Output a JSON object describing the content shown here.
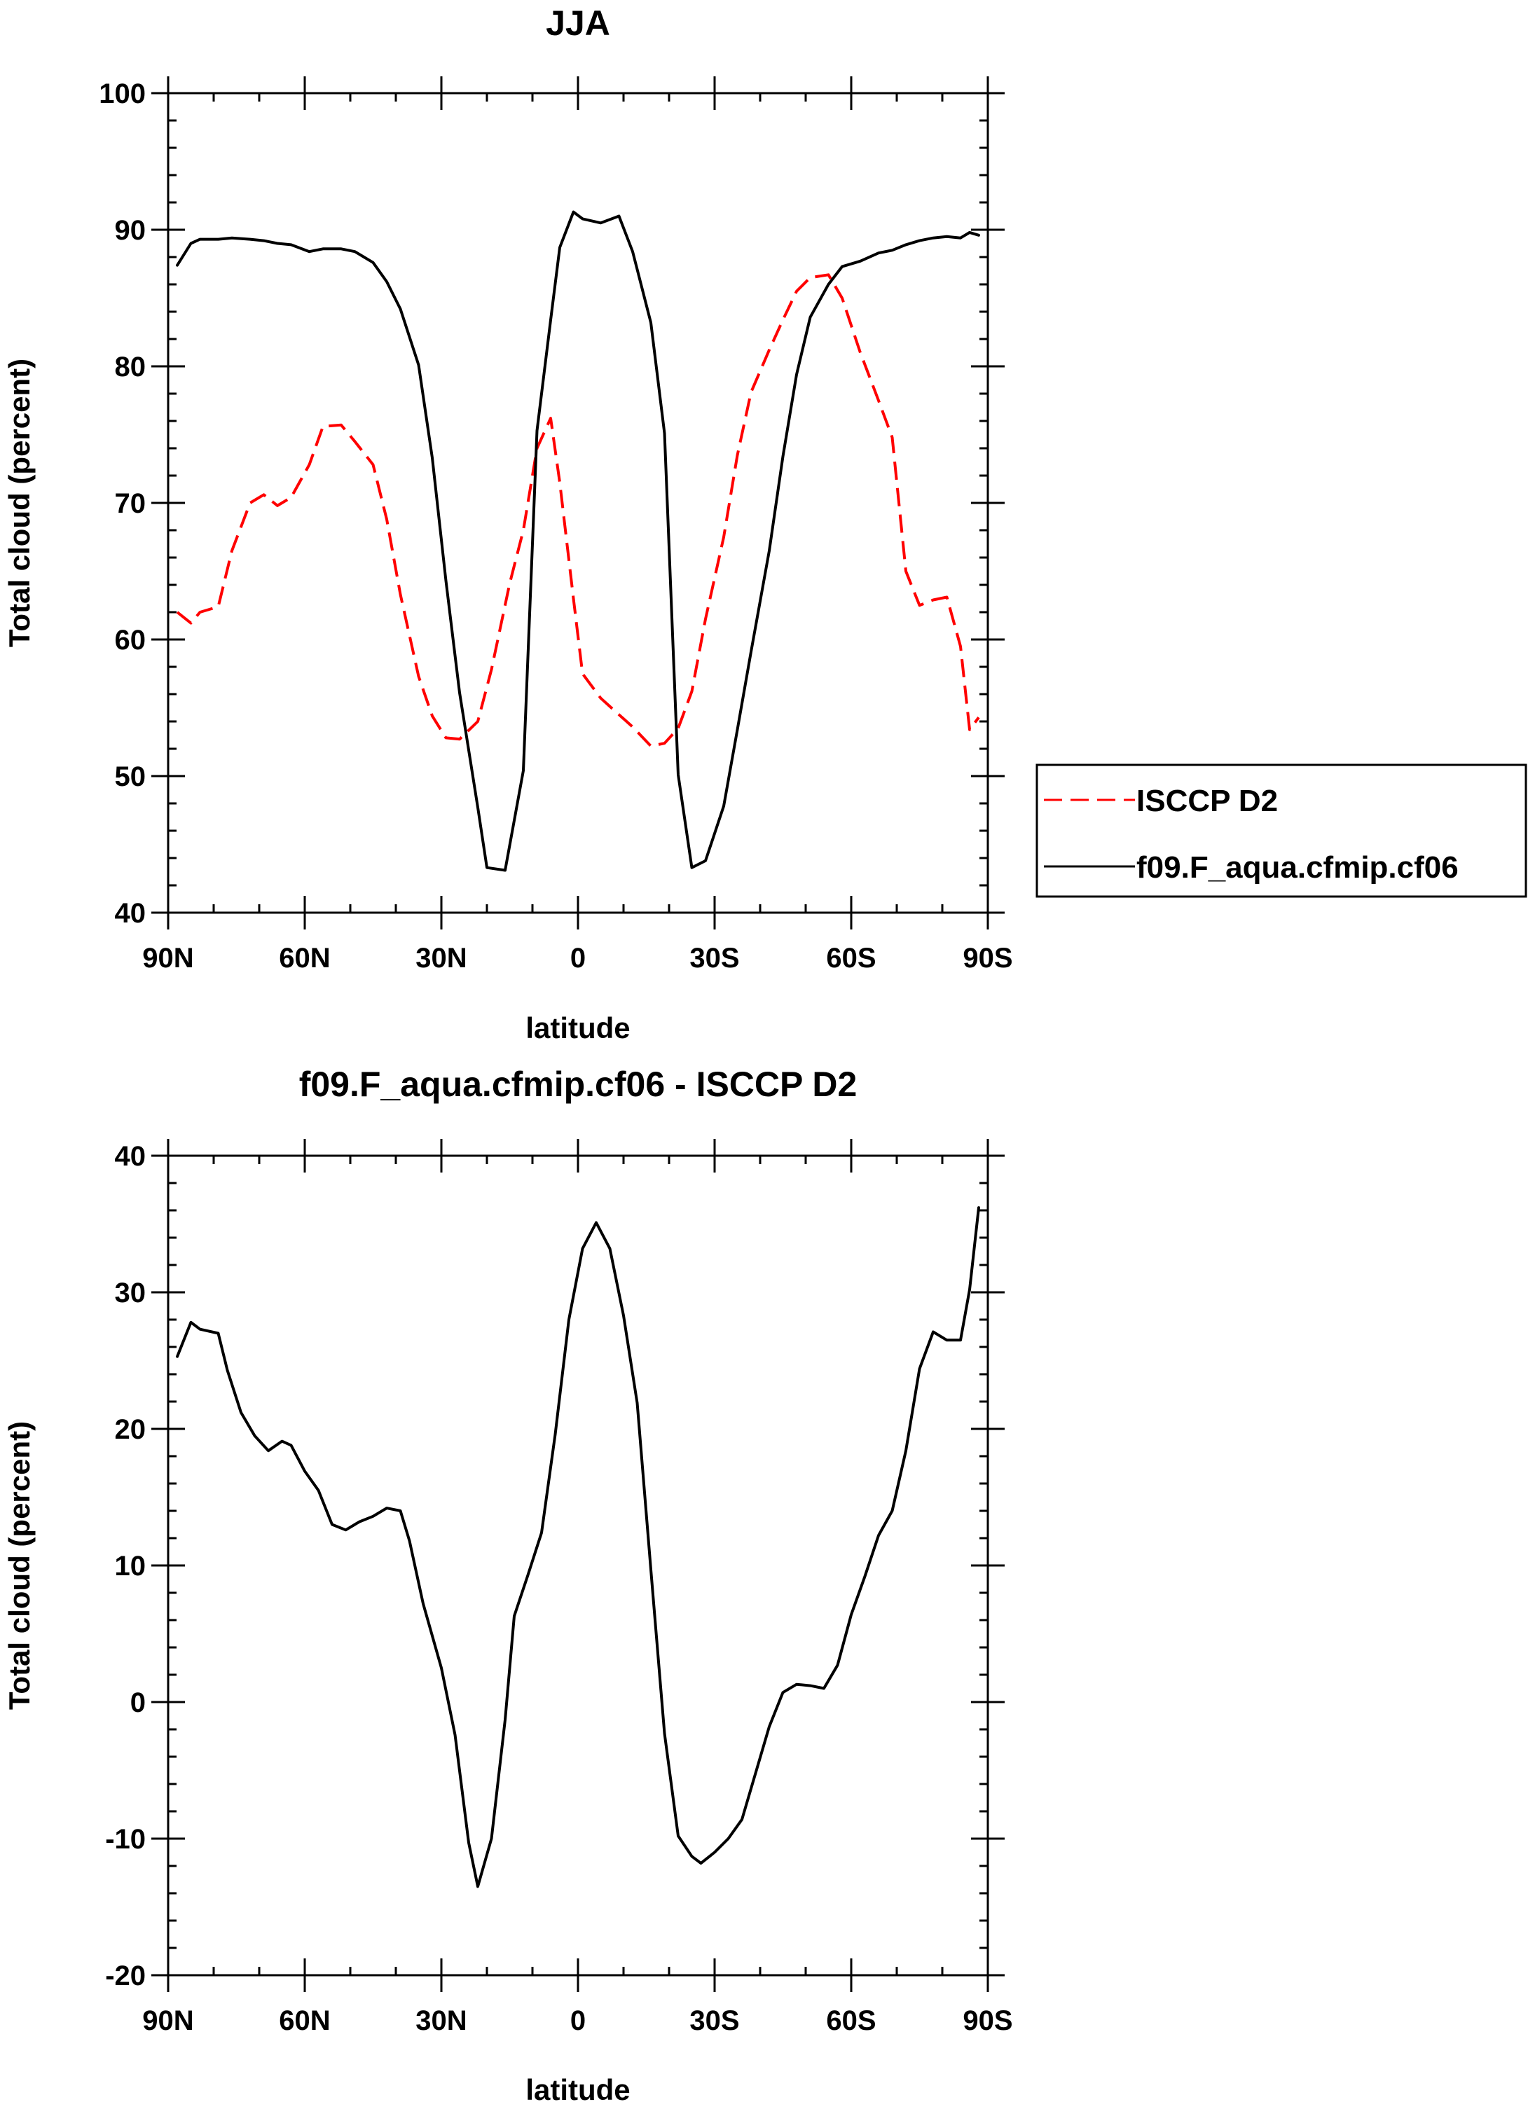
{
  "chart_data": [
    {
      "type": "line",
      "title": "JJA",
      "xlabel": "latitude",
      "ylabel": "Total cloud (percent)",
      "xlim": [
        -90,
        90
      ],
      "ylim": [
        40,
        100
      ],
      "xtick_labels": [
        "90N",
        "60N",
        "30N",
        "0",
        "30S",
        "60S",
        "90S"
      ],
      "ytick_labels": [
        "40",
        "50",
        "60",
        "70",
        "80",
        "90",
        "100"
      ],
      "legend": [
        "ISCCP D2",
        "f09.F_aqua.cfmip.cf06"
      ],
      "legend_position": "right",
      "series": [
        {
          "name": "ISCCP D2",
          "color": "#ff0000",
          "style": "dashed",
          "x": [
            -88,
            -85,
            -83,
            -79,
            -76,
            -72,
            -69,
            -66,
            -63,
            -59,
            -56,
            -52,
            -49,
            -45,
            -42,
            -39,
            -35,
            -32,
            -29,
            -26,
            -22,
            -19,
            -15,
            -12,
            -9,
            -6,
            -4,
            -1,
            1,
            5,
            9,
            12,
            16,
            19,
            22,
            25,
            28,
            32,
            35,
            38,
            42,
            45,
            48,
            51,
            55,
            58,
            62,
            66,
            69,
            72,
            75,
            78,
            81,
            84,
            86,
            88
          ],
          "values": [
            62,
            61.2,
            62,
            62.4,
            66.5,
            70,
            70.6,
            69.8,
            70.4,
            72.8,
            75.6,
            75.7,
            74.5,
            72.8,
            68.8,
            63.3,
            57.3,
            54.4,
            52.8,
            52.7,
            54,
            57.8,
            64.1,
            68,
            74,
            76.2,
            71.5,
            63,
            57.5,
            55.7,
            54.5,
            53.6,
            52.2,
            52.4,
            53.5,
            56.2,
            61.5,
            67.5,
            73.5,
            78.1,
            81.2,
            83.4,
            85.5,
            86.5,
            86.7,
            85,
            81,
            77.5,
            74.8,
            65,
            62.5,
            62.9,
            63.1,
            59.5,
            53.4,
            54.3
          ]
        },
        {
          "name": "f09.F_aqua.cfmip.cf06",
          "color": "#000000",
          "style": "solid",
          "x": [
            -88,
            -85,
            -83,
            -79,
            -76,
            -72,
            -69,
            -66,
            -63,
            -59,
            -56,
            -52,
            -49,
            -47,
            -45,
            -42,
            -39,
            -35,
            -32,
            -29,
            -26,
            -22,
            -20,
            -16,
            -12,
            -9,
            -6,
            -4,
            -1,
            1,
            5,
            9,
            12,
            16,
            19,
            22,
            25,
            28,
            32,
            35,
            38,
            42,
            45,
            48,
            51,
            55,
            58,
            62,
            66,
            69,
            72,
            75,
            78,
            81,
            84,
            86,
            88
          ],
          "values": [
            87.4,
            89,
            89.3,
            89.3,
            89.4,
            89.3,
            89.2,
            89,
            88.9,
            88.4,
            88.6,
            88.6,
            88.4,
            88,
            87.6,
            86.2,
            84.2,
            80.1,
            73.3,
            64.3,
            56.1,
            47.7,
            43.3,
            43.1,
            50.4,
            75.3,
            83.4,
            88.7,
            91.3,
            90.8,
            90.5,
            91,
            88.4,
            83.2,
            75.1,
            50.1,
            43.3,
            43.8,
            47.8,
            53.4,
            59.1,
            66.5,
            73.4,
            79.4,
            83.6,
            86,
            87.3,
            87.7,
            88.3,
            88.5,
            88.9,
            89.2,
            89.4,
            89.5,
            89.4,
            89.8,
            89.6
          ]
        }
      ]
    },
    {
      "type": "line",
      "title": "f09.F_aqua.cfmip.cf06 - ISCCP D2",
      "xlabel": "latitude",
      "ylabel": "Total cloud (percent)",
      "xlim": [
        -90,
        90
      ],
      "ylim": [
        -20,
        40
      ],
      "xtick_labels": [
        "90N",
        "60N",
        "30N",
        "0",
        "30S",
        "60S",
        "90S"
      ],
      "ytick_labels": [
        "-20",
        "-10",
        "0",
        "10",
        "20",
        "30",
        "40"
      ],
      "series": [
        {
          "name": "f09.F_aqua.cfmip.cf06 - ISCCP D2",
          "color": "#000000",
          "style": "solid",
          "x": [
            -88,
            -85,
            -83,
            -79,
            -77,
            -74,
            -71,
            -68,
            -65,
            -63,
            -60,
            -57,
            -54,
            -51,
            -48,
            -45,
            -42,
            -39,
            -37,
            -34,
            -30,
            -27,
            -24,
            -22,
            -19,
            -16,
            -14,
            -11,
            -8,
            -5,
            -2,
            1,
            4,
            7,
            10,
            13,
            16,
            19,
            22,
            25,
            27,
            30,
            33,
            36,
            39,
            42,
            45,
            48,
            51,
            54,
            57,
            60,
            63,
            66,
            69,
            72,
            75,
            78,
            81,
            84,
            86,
            88
          ],
          "values": [
            25.3,
            27.8,
            27.3,
            27,
            24.3,
            21.2,
            19.5,
            18.4,
            19.1,
            18.8,
            16.9,
            15.5,
            13,
            12.6,
            13.2,
            13.6,
            14.2,
            14,
            11.8,
            7.2,
            2.5,
            -2.4,
            -10.3,
            -13.5,
            -10,
            -1.3,
            6.3,
            9.3,
            12.4,
            19.6,
            28,
            33.2,
            35.1,
            33.2,
            28.3,
            21.9,
            9.7,
            -2.3,
            -9.8,
            -11.3,
            -11.8,
            -11,
            -10,
            -8.6,
            -5.2,
            -1.8,
            0.7,
            1.3,
            1.2,
            1,
            2.7,
            6.4,
            9.2,
            12.2,
            14,
            18.4,
            24.4,
            27.1,
            26.5,
            26.5,
            30.2,
            36.2
          ]
        }
      ]
    }
  ]
}
